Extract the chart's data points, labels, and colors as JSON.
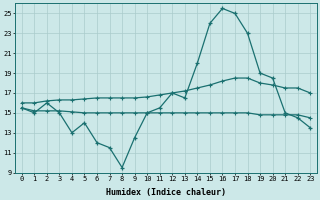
{
  "xlabel": "Humidex (Indice chaleur)",
  "bg_color": "#cce8e8",
  "line_color": "#1a7070",
  "grid_color": "#aacccc",
  "xlim": [
    -0.5,
    23.5
  ],
  "ylim": [
    9,
    26
  ],
  "yticks": [
    9,
    11,
    13,
    15,
    17,
    19,
    21,
    23,
    25
  ],
  "xticks": [
    0,
    1,
    2,
    3,
    4,
    5,
    6,
    7,
    8,
    9,
    10,
    11,
    12,
    13,
    14,
    15,
    16,
    17,
    18,
    19,
    20,
    21,
    22,
    23
  ],
  "line1": [
    15.5,
    15.0,
    16.0,
    15.0,
    13.0,
    14.0,
    12.0,
    11.5,
    9.5,
    12.5,
    15.0,
    15.5,
    17.0,
    16.5,
    20.0,
    24.0,
    25.5,
    25.0,
    23.0,
    19.0,
    18.5,
    15.0,
    14.5,
    13.5
  ],
  "line2": [
    16.0,
    16.0,
    16.2,
    16.3,
    16.3,
    16.4,
    16.5,
    16.5,
    16.5,
    16.5,
    16.6,
    16.8,
    17.0,
    17.2,
    17.5,
    17.8,
    18.2,
    18.5,
    18.5,
    18.0,
    17.8,
    17.5,
    17.5,
    17.0
  ],
  "line3": [
    15.5,
    15.2,
    15.2,
    15.2,
    15.1,
    15.0,
    15.0,
    15.0,
    15.0,
    15.0,
    15.0,
    15.0,
    15.0,
    15.0,
    15.0,
    15.0,
    15.0,
    15.0,
    15.0,
    14.8,
    14.8,
    14.8,
    14.8,
    14.5
  ]
}
